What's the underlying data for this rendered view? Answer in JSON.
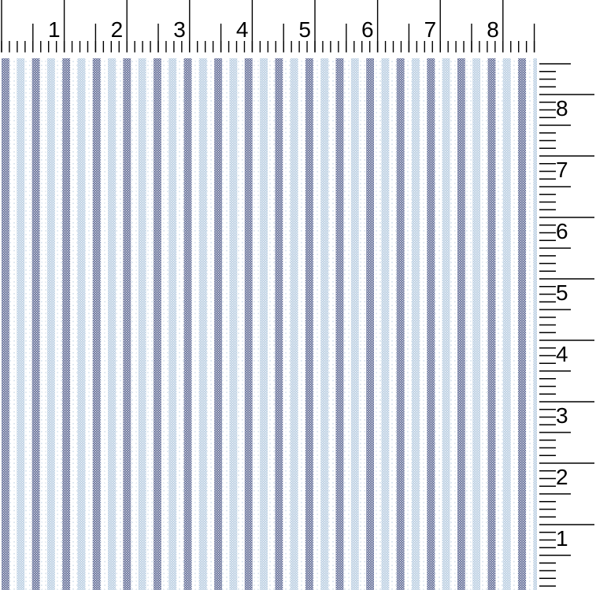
{
  "page": {
    "title": "Blue striped ticking fabric swatch with inch rulers"
  },
  "fabric": {
    "name": "striped-fabric-swatch",
    "pattern": "alternating navy and light blue dotted woven stripes on white ground",
    "colors": {
      "navy_stripe": "#344178",
      "light_blue_stripe": "#a4bfd9",
      "ground": "#ffffff",
      "weave_dot": "#ffffff",
      "speckle": "#c3d4e4"
    }
  },
  "ruler_color": "#000000",
  "top_ruler": {
    "unit": "inches",
    "divisions_per_inch": 8,
    "labels": [
      "1",
      "2",
      "3",
      "4",
      "5",
      "6",
      "7",
      "8"
    ]
  },
  "right_ruler": {
    "unit": "inches",
    "divisions_per_inch": 8,
    "labels": [
      "8",
      "7",
      "6",
      "5",
      "4",
      "3",
      "2",
      "1"
    ]
  }
}
